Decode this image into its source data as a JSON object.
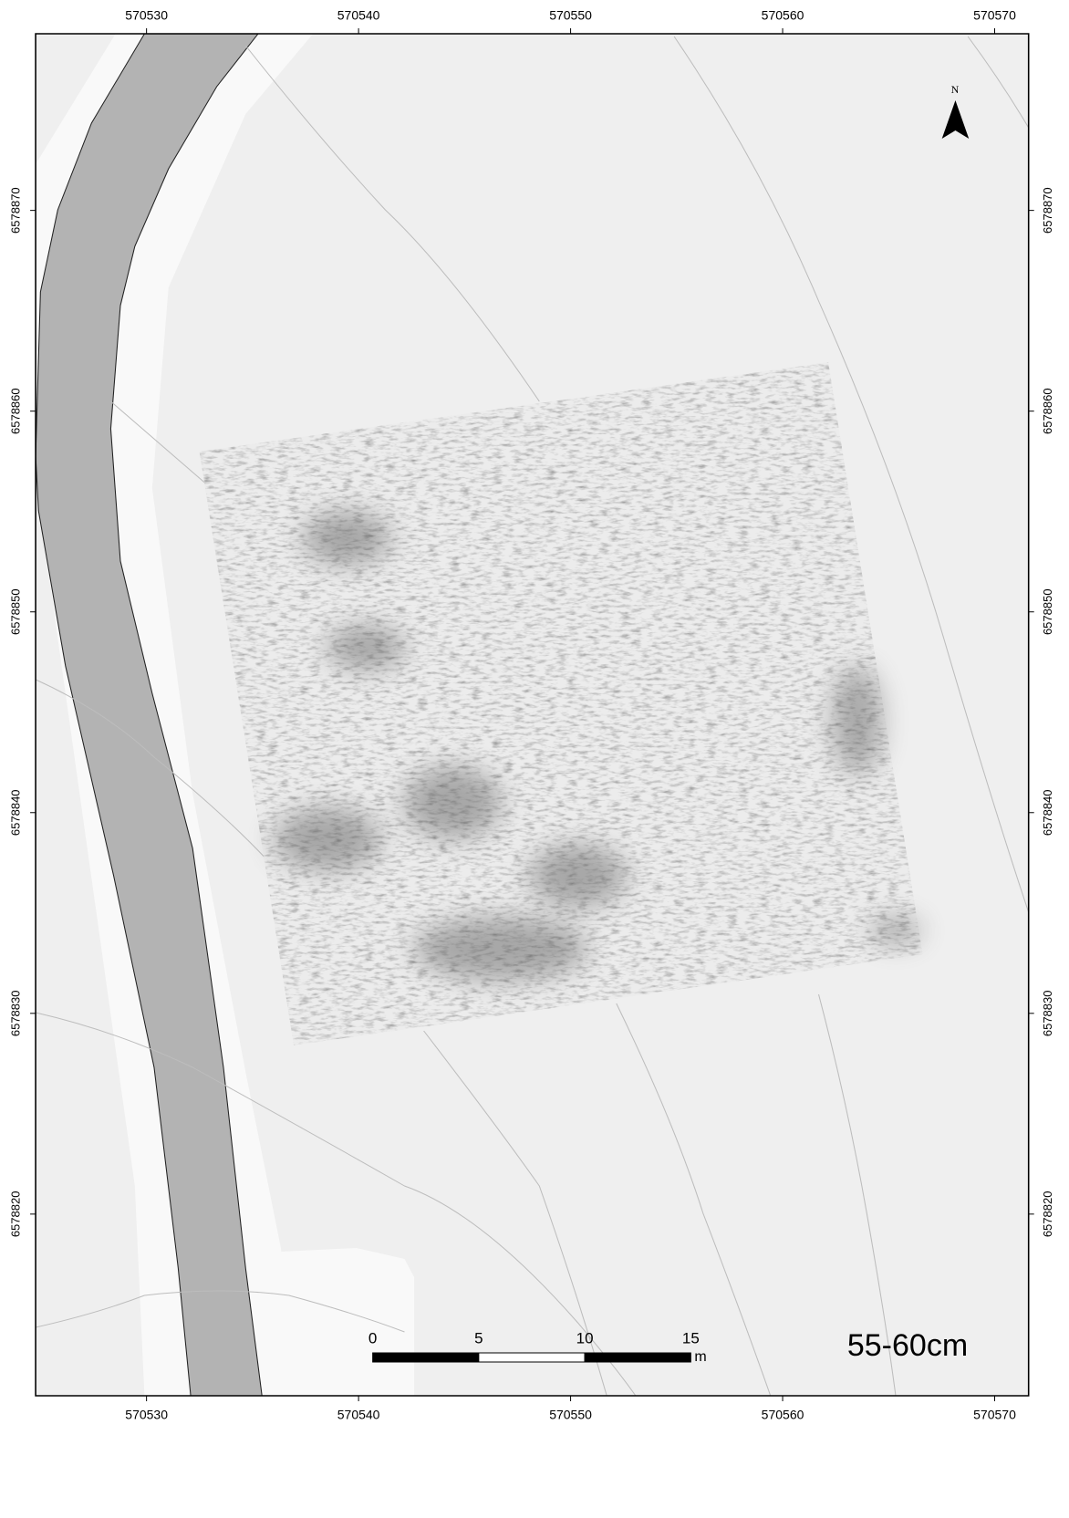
{
  "map": {
    "xlim": [
      570524.77,
      570571.6
    ],
    "ylim": [
      6578810.95,
      6578878.8
    ],
    "xticks": [
      570530,
      570540,
      570550,
      570560,
      570570
    ],
    "yticks": [
      6578820,
      6578830,
      6578840,
      6578850,
      6578860,
      6578870
    ],
    "north_label": "N",
    "depth_label": "55-60cm",
    "scale_bar": {
      "ticks": [
        0,
        5,
        10,
        15
      ],
      "unit": "m"
    }
  }
}
